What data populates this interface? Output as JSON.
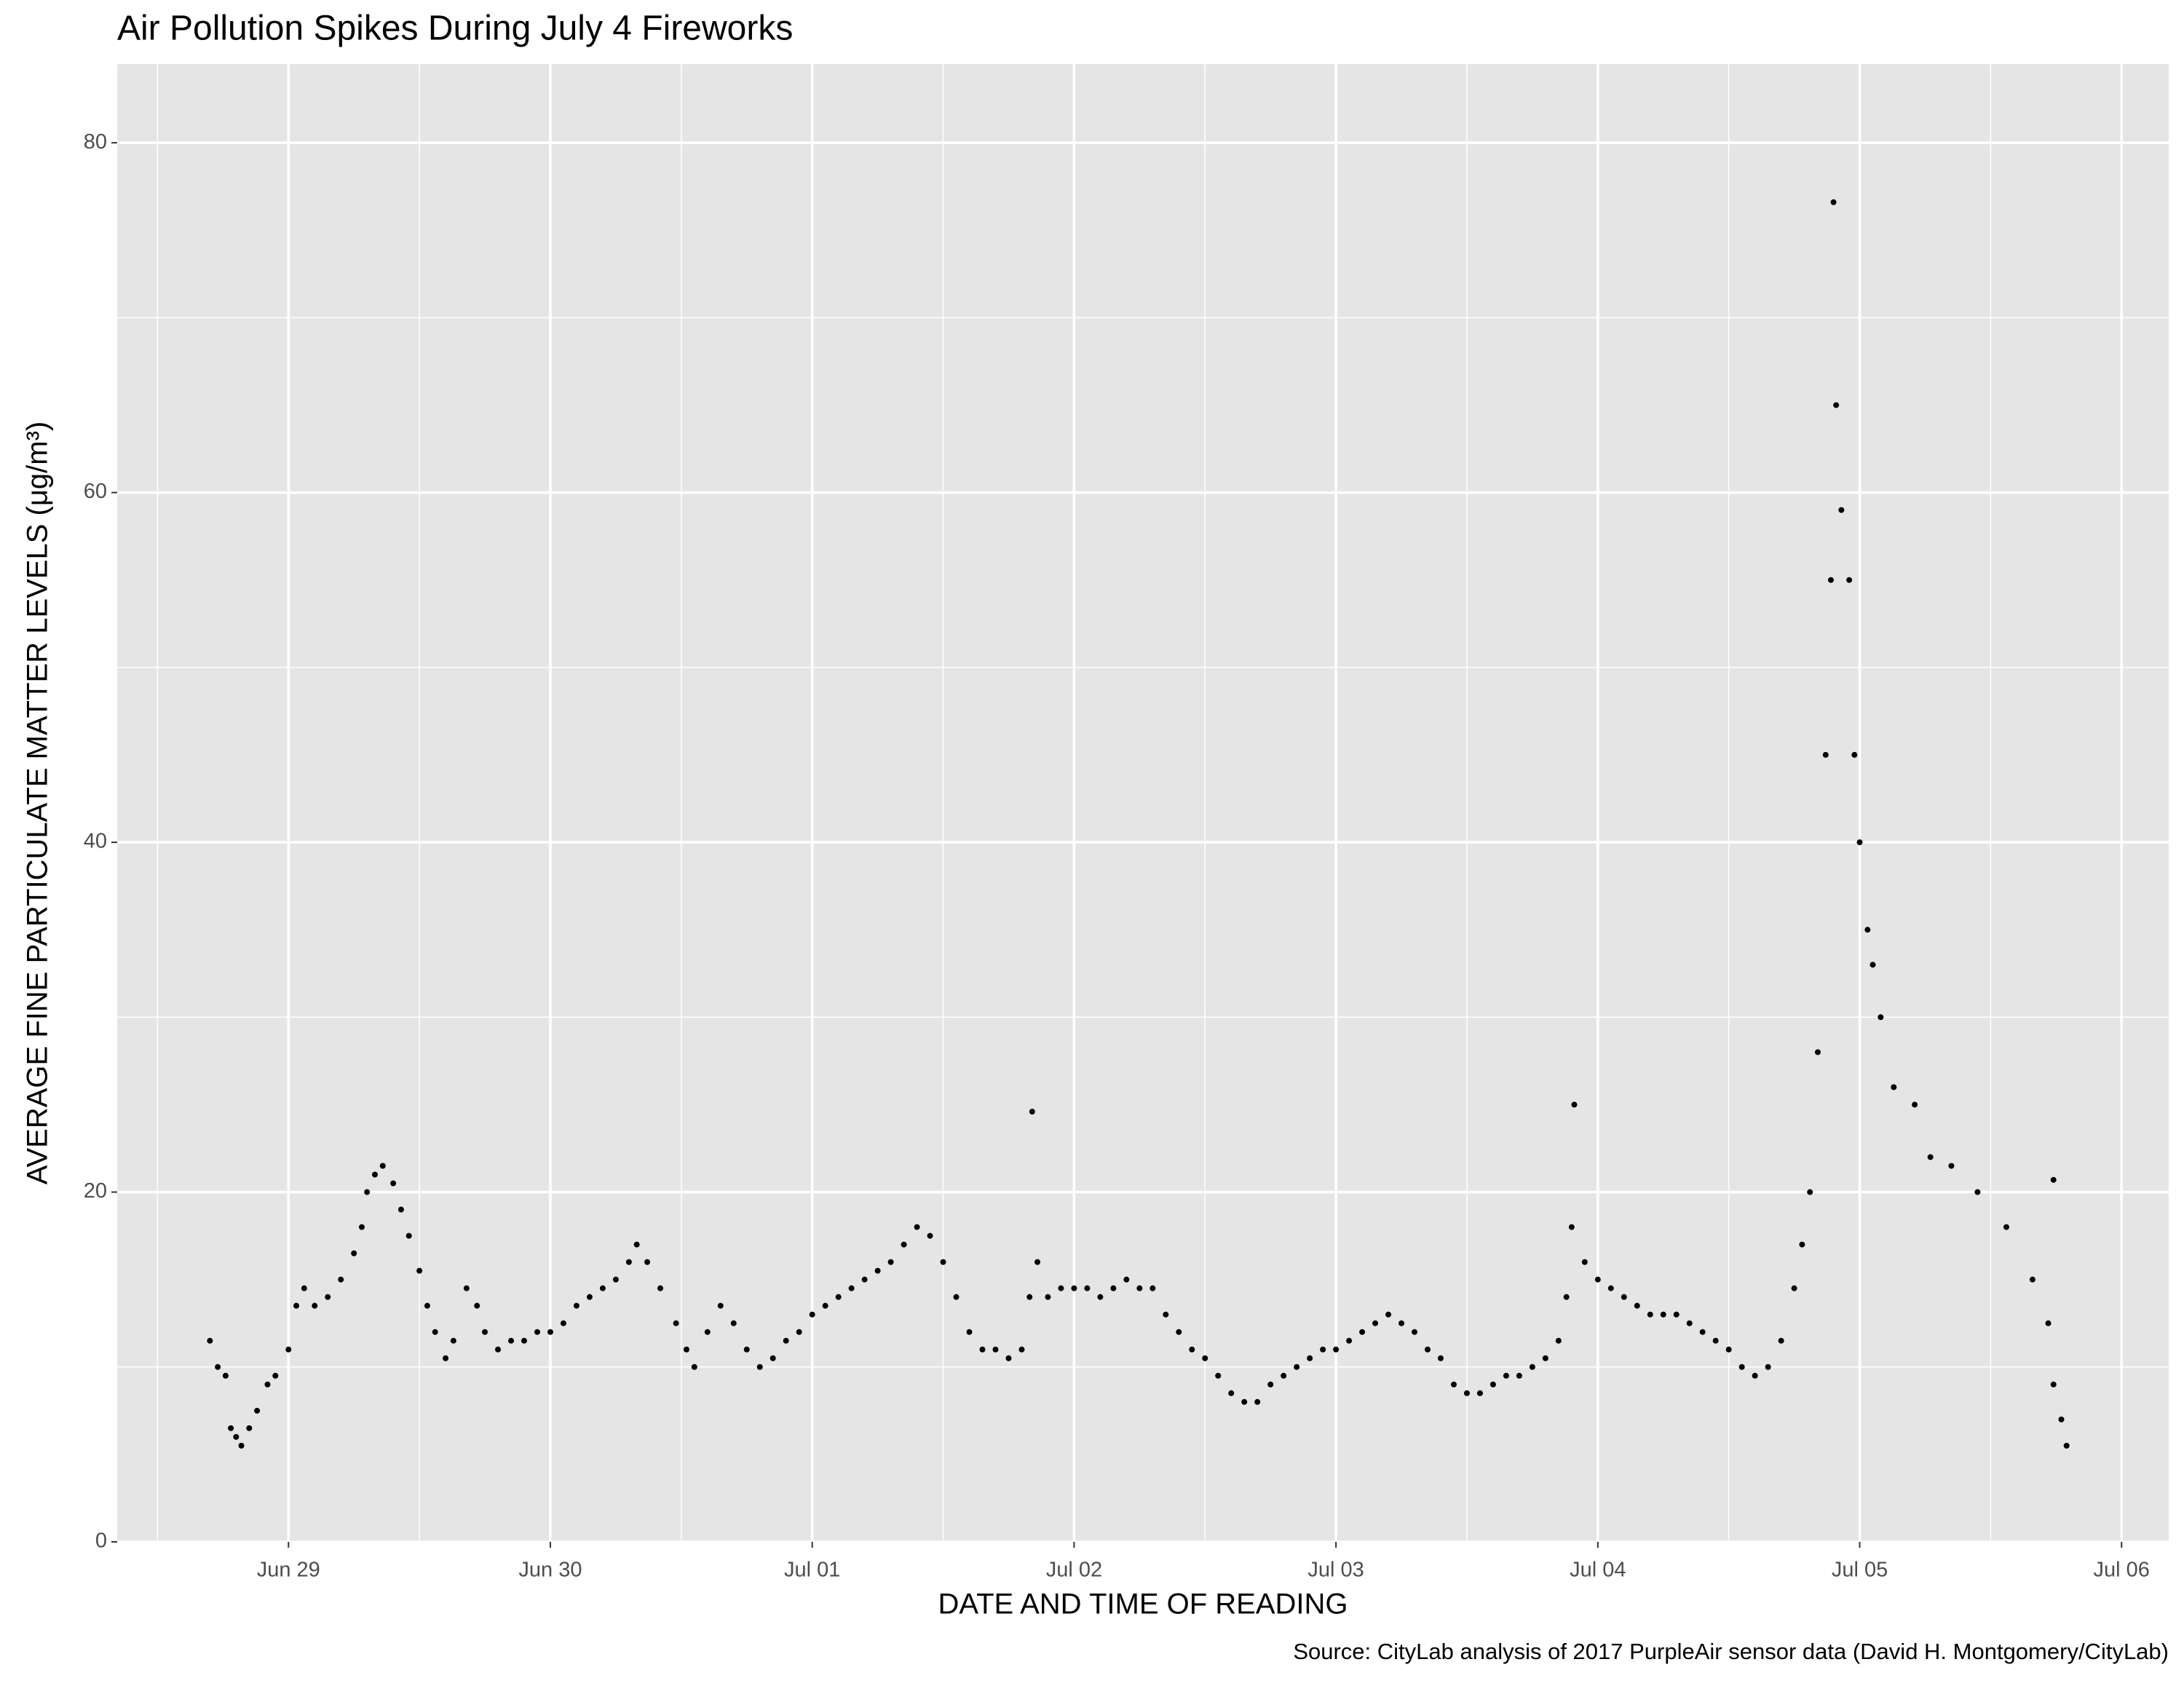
{
  "chart_data": {
    "type": "scatter",
    "title": "Air Pollution Spikes During July 4 Fireworks",
    "x_label": "DATE AND TIME OF READING",
    "y_label": "AVERAGE FINE PARTICULATE MATTER LEVELS (μg/m³)",
    "caption": "Source: CityLab analysis of 2017 PurpleAir sensor data (David H. Montgomery/CityLab)",
    "color": "#000000",
    "background": "#e5e5e5",
    "grid": true,
    "xlim": [
      -0.654,
      7.18
    ],
    "ylim": [
      0,
      84.5
    ],
    "xticks": [
      {
        "value": 0,
        "label": "Jun 29"
      },
      {
        "value": 1,
        "label": "Jun 30"
      },
      {
        "value": 2,
        "label": "Jul 01"
      },
      {
        "value": 3,
        "label": "Jul 02"
      },
      {
        "value": 4,
        "label": "Jul 03"
      },
      {
        "value": 5,
        "label": "Jul 04"
      },
      {
        "value": 6,
        "label": "Jul 05"
      },
      {
        "value": 7,
        "label": "Jul 06"
      }
    ],
    "x_minor_ticks": [
      -0.5,
      0.5,
      1.5,
      2.5,
      3.5,
      4.5,
      5.5,
      6.5
    ],
    "yticks": [
      0,
      20,
      40,
      60,
      80
    ],
    "y_minor_ticks": [
      10,
      30,
      50,
      70
    ],
    "x": [
      -0.3,
      -0.27,
      -0.24,
      -0.22,
      -0.2,
      -0.18,
      -0.15,
      -0.12,
      -0.08,
      -0.05,
      0.0,
      0.03,
      0.06,
      0.1,
      0.15,
      0.2,
      0.25,
      0.28,
      0.3,
      0.33,
      0.36,
      0.4,
      0.43,
      0.46,
      0.5,
      0.53,
      0.56,
      0.6,
      0.63,
      0.68,
      0.72,
      0.75,
      0.8,
      0.85,
      0.9,
      0.95,
      1.0,
      1.05,
      1.1,
      1.15,
      1.2,
      1.25,
      1.3,
      1.33,
      1.37,
      1.42,
      1.48,
      1.52,
      1.55,
      1.6,
      1.65,
      1.7,
      1.75,
      1.8,
      1.85,
      1.9,
      1.95,
      2.0,
      2.05,
      2.1,
      2.15,
      2.2,
      2.25,
      2.3,
      2.35,
      2.4,
      2.45,
      2.5,
      2.55,
      2.6,
      2.65,
      2.7,
      2.75,
      2.8,
      2.83,
      2.84,
      2.86,
      2.9,
      2.95,
      3.0,
      3.05,
      3.1,
      3.15,
      3.2,
      3.25,
      3.3,
      3.35,
      3.4,
      3.45,
      3.5,
      3.55,
      3.6,
      3.65,
      3.7,
      3.75,
      3.8,
      3.85,
      3.9,
      3.95,
      4.0,
      4.05,
      4.1,
      4.15,
      4.2,
      4.25,
      4.3,
      4.35,
      4.4,
      4.45,
      4.5,
      4.55,
      4.6,
      4.65,
      4.7,
      4.75,
      4.8,
      4.85,
      4.88,
      4.9,
      4.91,
      4.95,
      5.0,
      5.05,
      5.1,
      5.15,
      5.2,
      5.25,
      5.3,
      5.35,
      5.4,
      5.45,
      5.5,
      5.55,
      5.6,
      5.65,
      5.7,
      5.75,
      5.78,
      5.81,
      5.84,
      5.87,
      5.89,
      5.9,
      5.91,
      5.93,
      5.96,
      5.98,
      6.0,
      6.03,
      6.05,
      6.08,
      6.13,
      6.21,
      6.27,
      6.35,
      6.45,
      6.56,
      6.66,
      6.72,
      6.74,
      6.74,
      6.77,
      6.79
    ],
    "values": [
      11.5,
      10,
      9.5,
      6.5,
      6,
      5.5,
      6.5,
      7.5,
      9,
      9.5,
      11,
      13.5,
      14.5,
      13.5,
      14,
      15,
      16.5,
      18,
      20,
      21,
      21.5,
      20.5,
      19,
      17.5,
      15.5,
      13.5,
      12,
      10.5,
      11.5,
      14.5,
      13.5,
      12,
      11,
      11.5,
      11.5,
      12,
      12,
      12.5,
      13.5,
      14,
      14.5,
      15,
      16,
      17,
      16,
      14.5,
      12.5,
      11,
      10,
      12,
      13.5,
      12.5,
      11,
      10,
      10.5,
      11.5,
      12,
      13,
      13.5,
      14,
      14.5,
      15,
      15.5,
      16,
      17,
      18,
      17.5,
      16,
      14,
      12,
      11,
      11,
      10.5,
      11,
      14,
      24.6,
      16,
      14,
      14.5,
      14.5,
      14.5,
      14,
      14.5,
      15,
      14.5,
      14.5,
      13,
      12,
      11,
      10.5,
      9.5,
      8.5,
      8,
      8,
      9,
      9.5,
      10,
      10.5,
      11,
      11,
      11.5,
      12,
      12.5,
      13,
      12.5,
      12,
      11,
      10.5,
      9,
      8.5,
      8.5,
      9,
      9.5,
      9.5,
      10,
      10.5,
      11.5,
      14,
      18,
      25,
      16,
      15,
      14.5,
      14,
      13.5,
      13,
      13,
      13,
      12.5,
      12,
      11.5,
      11,
      10,
      9.5,
      10,
      11.5,
      14.5,
      17,
      20,
      28,
      45,
      55,
      76.6,
      65,
      59,
      55,
      45,
      40,
      35,
      33,
      30,
      26,
      25,
      22,
      21.5,
      20,
      18,
      15,
      12.5,
      20.7,
      9,
      7,
      5.5
    ]
  }
}
